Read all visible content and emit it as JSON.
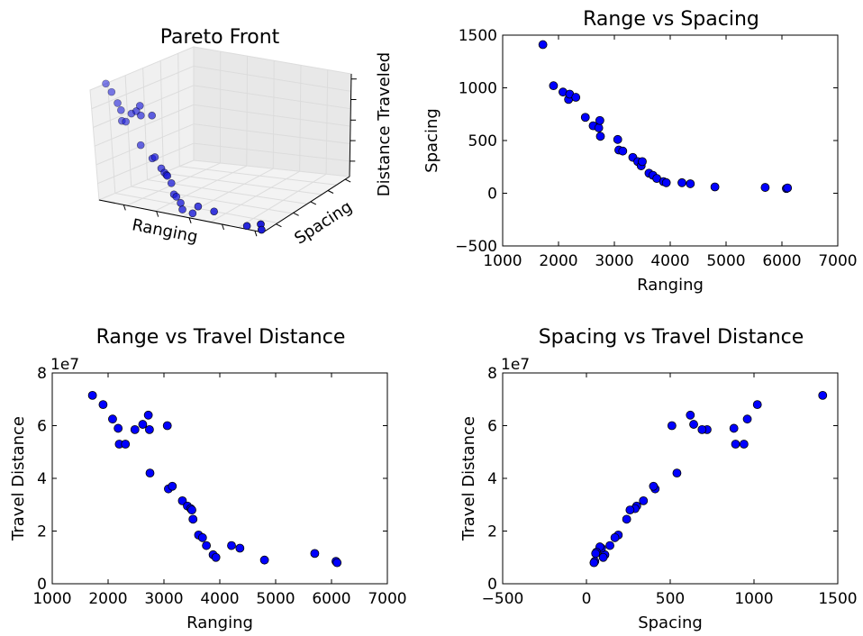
{
  "chart_data": [
    {
      "type": "scatter3d",
      "title": "Pareto Front",
      "xlabel": "Ranging",
      "ylabel": "Spacing",
      "zlabel": "Distance Traveled",
      "color": "#0000ff"
    },
    {
      "type": "scatter",
      "title": "Range vs Spacing",
      "xlabel": "Ranging",
      "ylabel": "Spacing",
      "xlim": [
        1000,
        7000
      ],
      "ylim": [
        -500,
        1500
      ],
      "xticks": [
        1000,
        2000,
        3000,
        4000,
        5000,
        6000,
        7000
      ],
      "yticks": [
        -500,
        0,
        500,
        1000,
        1500
      ],
      "xtick_labels": [
        "1000",
        "2000",
        "3000",
        "4000",
        "5000",
        "6000",
        "7000"
      ],
      "ytick_labels": [
        "−500",
        "0",
        "500",
        "1000",
        "1500"
      ],
      "color": "#0000ff",
      "points": [
        [
          1720,
          1410
        ],
        [
          1910,
          1020
        ],
        [
          2080,
          960
        ],
        [
          2180,
          890
        ],
        [
          2200,
          940
        ],
        [
          2310,
          910
        ],
        [
          2480,
          720
        ],
        [
          2620,
          640
        ],
        [
          2720,
          620
        ],
        [
          2740,
          690
        ],
        [
          2750,
          540
        ],
        [
          3060,
          510
        ],
        [
          3080,
          410
        ],
        [
          3150,
          400
        ],
        [
          3330,
          340
        ],
        [
          3420,
          300
        ],
        [
          3480,
          260
        ],
        [
          3500,
          300
        ],
        [
          3620,
          190
        ],
        [
          3690,
          170
        ],
        [
          3760,
          140
        ],
        [
          3880,
          110
        ],
        [
          3930,
          100
        ],
        [
          4210,
          100
        ],
        [
          4360,
          90
        ],
        [
          4800,
          60
        ],
        [
          5700,
          55
        ],
        [
          6080,
          45
        ],
        [
          6100,
          50
        ]
      ]
    },
    {
      "type": "scatter",
      "title": "Range vs Travel Distance",
      "xlabel": "Ranging",
      "ylabel": "Travel Distance",
      "offset_text": "1e7",
      "xlim": [
        1000,
        7000
      ],
      "ylim": [
        0,
        8
      ],
      "xticks": [
        1000,
        2000,
        3000,
        4000,
        5000,
        6000,
        7000
      ],
      "yticks": [
        0,
        2,
        4,
        6,
        8
      ],
      "xtick_labels": [
        "1000",
        "2000",
        "3000",
        "4000",
        "5000",
        "6000",
        "7000"
      ],
      "ytick_labels": [
        "0",
        "2",
        "4",
        "6",
        "8"
      ],
      "color": "#0000ff",
      "points": [
        [
          1720,
          7.15
        ],
        [
          1910,
          6.8
        ],
        [
          2080,
          6.25
        ],
        [
          2180,
          5.9
        ],
        [
          2200,
          5.3
        ],
        [
          2310,
          5.3
        ],
        [
          2480,
          5.85
        ],
        [
          2620,
          6.05
        ],
        [
          2720,
          6.4
        ],
        [
          2740,
          5.85
        ],
        [
          2750,
          4.2
        ],
        [
          3060,
          6.0
        ],
        [
          3080,
          3.6
        ],
        [
          3150,
          3.7
        ],
        [
          3330,
          3.15
        ],
        [
          3420,
          2.95
        ],
        [
          3480,
          2.85
        ],
        [
          3500,
          2.8
        ],
        [
          3520,
          2.45
        ],
        [
          3620,
          1.85
        ],
        [
          3690,
          1.75
        ],
        [
          3760,
          1.45
        ],
        [
          3880,
          1.1
        ],
        [
          3930,
          1.0
        ],
        [
          4210,
          1.45
        ],
        [
          4360,
          1.35
        ],
        [
          4800,
          0.9
        ],
        [
          5700,
          1.15
        ],
        [
          6080,
          0.85
        ],
        [
          6100,
          0.8
        ]
      ]
    },
    {
      "type": "scatter",
      "title": "Spacing vs Travel Distance",
      "xlabel": "Spacing",
      "ylabel": "Travel Distance",
      "offset_text": "1e7",
      "xlim": [
        -500,
        1500
      ],
      "ylim": [
        0,
        8
      ],
      "xticks": [
        -500,
        0,
        500,
        1000,
        1500
      ],
      "yticks": [
        0,
        2,
        4,
        6,
        8
      ],
      "xtick_labels": [
        "−500",
        "0",
        "500",
        "1000",
        "1500"
      ],
      "ytick_labels": [
        "0",
        "2",
        "4",
        "6",
        "8"
      ],
      "color": "#0000ff",
      "points": [
        [
          1410,
          7.15
        ],
        [
          1020,
          6.8
        ],
        [
          960,
          6.25
        ],
        [
          940,
          5.3
        ],
        [
          890,
          5.3
        ],
        [
          880,
          5.9
        ],
        [
          720,
          5.85
        ],
        [
          690,
          5.85
        ],
        [
          640,
          6.05
        ],
        [
          620,
          6.4
        ],
        [
          540,
          4.2
        ],
        [
          510,
          6.0
        ],
        [
          410,
          3.6
        ],
        [
          400,
          3.7
        ],
        [
          340,
          3.15
        ],
        [
          300,
          2.95
        ],
        [
          290,
          2.85
        ],
        [
          260,
          2.8
        ],
        [
          240,
          2.45
        ],
        [
          190,
          1.85
        ],
        [
          170,
          1.75
        ],
        [
          140,
          1.45
        ],
        [
          110,
          1.1
        ],
        [
          100,
          1.0
        ],
        [
          90,
          1.35
        ],
        [
          80,
          1.4
        ],
        [
          60,
          1.2
        ],
        [
          55,
          1.15
        ],
        [
          50,
          0.85
        ],
        [
          45,
          0.8
        ]
      ]
    }
  ]
}
